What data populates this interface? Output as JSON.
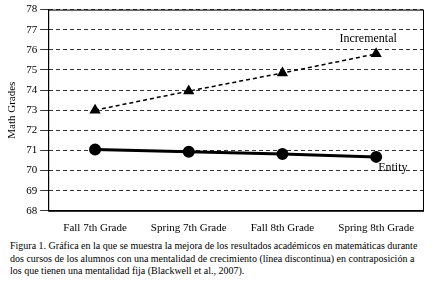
{
  "chart_data": {
    "type": "line",
    "title": "Figura 1. Gráfica en la que se muestra la mejora de los resultados académicos en matemáticas durante dos cursos de los alumnos con una mentalidad de crecimiento (línea discontinua) en contraposición a los que tienen una mentalidad fija (Blackwell et al., 2007).",
    "y_label": "Math Grades",
    "categories": [
      "Fall 7th Grade",
      "Spring 7th Grade",
      "Fall 8th Grade",
      "Spring 8th Grade"
    ],
    "series": [
      {
        "name": "Incremental",
        "color": "#000000",
        "marker": "triangle",
        "line_style": "dashed",
        "values": [
          73.0,
          73.95,
          74.85,
          75.8
        ]
      },
      {
        "name": "Entity",
        "color": "#000000",
        "marker": "circle",
        "line_style": "solid",
        "values": [
          71.05,
          70.93,
          70.82,
          70.68
        ]
      }
    ],
    "ylim": [
      68,
      78
    ],
    "yticks": [
      68,
      69,
      70,
      71,
      72,
      73,
      74,
      75,
      76,
      77,
      78
    ],
    "grid": true
  }
}
